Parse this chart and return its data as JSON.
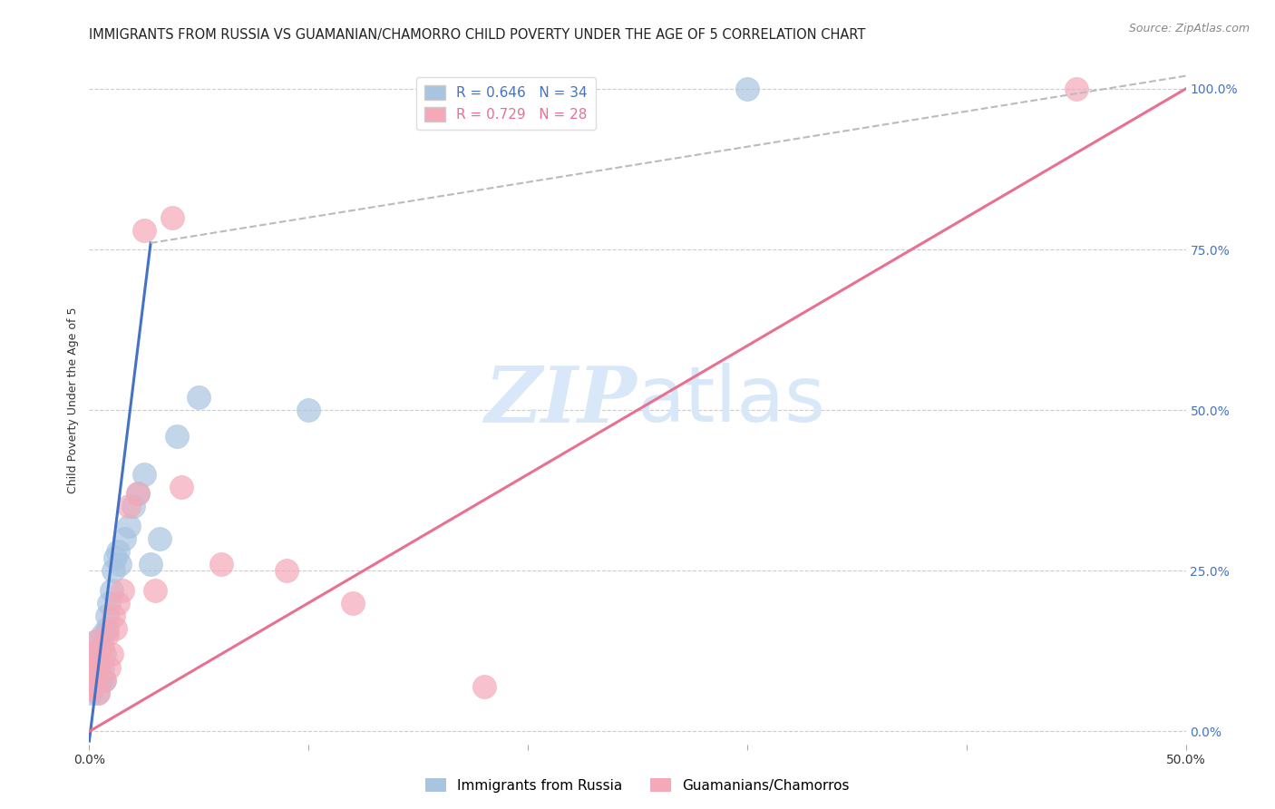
{
  "title": "IMMIGRANTS FROM RUSSIA VS GUAMANIAN/CHAMORRO CHILD POVERTY UNDER THE AGE OF 5 CORRELATION CHART",
  "source": "Source: ZipAtlas.com",
  "ylabel": "Child Poverty Under the Age of 5",
  "ylabel_right_ticks": [
    "0.0%",
    "25.0%",
    "50.0%",
    "75.0%",
    "100.0%"
  ],
  "ylabel_right_vals": [
    0,
    0.25,
    0.5,
    0.75,
    1.0
  ],
  "xlim": [
    0,
    0.5
  ],
  "ylim": [
    -0.02,
    1.05
  ],
  "watermark_top": "ZIP",
  "watermark_bot": "atlas",
  "legend": [
    {
      "label": "R = 0.646   N = 34",
      "color": "#a8c4e0"
    },
    {
      "label": "R = 0.729   N = 28",
      "color": "#f4a8b8"
    }
  ],
  "legend_labels_bottom": [
    "Immigrants from Russia",
    "Guamanians/Chamorros"
  ],
  "blue_scatter_x": [
    0.0005,
    0.001,
    0.0015,
    0.002,
    0.002,
    0.003,
    0.003,
    0.004,
    0.004,
    0.005,
    0.005,
    0.006,
    0.006,
    0.007,
    0.007,
    0.008,
    0.008,
    0.009,
    0.01,
    0.011,
    0.012,
    0.013,
    0.014,
    0.016,
    0.018,
    0.02,
    0.022,
    0.025,
    0.028,
    0.032,
    0.04,
    0.05,
    0.1,
    0.3
  ],
  "blue_scatter_y": [
    0.06,
    0.08,
    0.1,
    0.07,
    0.12,
    0.09,
    0.14,
    0.06,
    0.11,
    0.08,
    0.13,
    0.1,
    0.15,
    0.08,
    0.12,
    0.16,
    0.18,
    0.2,
    0.22,
    0.25,
    0.27,
    0.28,
    0.26,
    0.3,
    0.32,
    0.35,
    0.37,
    0.4,
    0.26,
    0.3,
    0.46,
    0.52,
    0.5,
    1.0
  ],
  "pink_scatter_x": [
    0.0005,
    0.001,
    0.0015,
    0.002,
    0.003,
    0.003,
    0.004,
    0.005,
    0.006,
    0.007,
    0.008,
    0.009,
    0.01,
    0.011,
    0.012,
    0.013,
    0.015,
    0.018,
    0.022,
    0.025,
    0.03,
    0.038,
    0.042,
    0.06,
    0.09,
    0.12,
    0.18,
    0.45
  ],
  "pink_scatter_y": [
    0.08,
    0.1,
    0.07,
    0.12,
    0.09,
    0.14,
    0.06,
    0.11,
    0.13,
    0.08,
    0.15,
    0.1,
    0.12,
    0.18,
    0.16,
    0.2,
    0.22,
    0.35,
    0.37,
    0.78,
    0.22,
    0.8,
    0.38,
    0.26,
    0.25,
    0.2,
    0.07,
    1.0
  ],
  "blue_line_x0": 0.0,
  "blue_line_y0": -0.015,
  "blue_line_x1": 0.028,
  "blue_line_y1": 0.76,
  "blue_line_dash_x0": 0.028,
  "blue_line_dash_y0": 0.76,
  "blue_line_dash_x1": 0.5,
  "blue_line_dash_y1": 1.02,
  "pink_line_x0": 0.0,
  "pink_line_y0": 0.0,
  "pink_line_x1": 0.5,
  "pink_line_y1": 1.0,
  "blue_line_color": "#4472c4",
  "blue_line_dashed_color": "#bbbbbb",
  "pink_line_color": "#e87090",
  "scatter_blue_color": "#a8c4e0",
  "scatter_pink_color": "#f4a8b8",
  "scatter_alpha": 0.7,
  "scatter_size": 350,
  "grid_color": "#cccccc",
  "background_color": "#ffffff",
  "title_fontsize": 10.5,
  "source_fontsize": 9,
  "axis_label_fontsize": 9,
  "tick_fontsize": 10,
  "legend_fontsize": 11,
  "watermark_fontsize_zip": 62,
  "watermark_fontsize_atlas": 62,
  "watermark_color": "#d8e8f8",
  "right_tick_color": "#4472c4",
  "x_tick_positions": [
    0.0,
    0.1,
    0.2,
    0.3,
    0.4,
    0.5
  ]
}
